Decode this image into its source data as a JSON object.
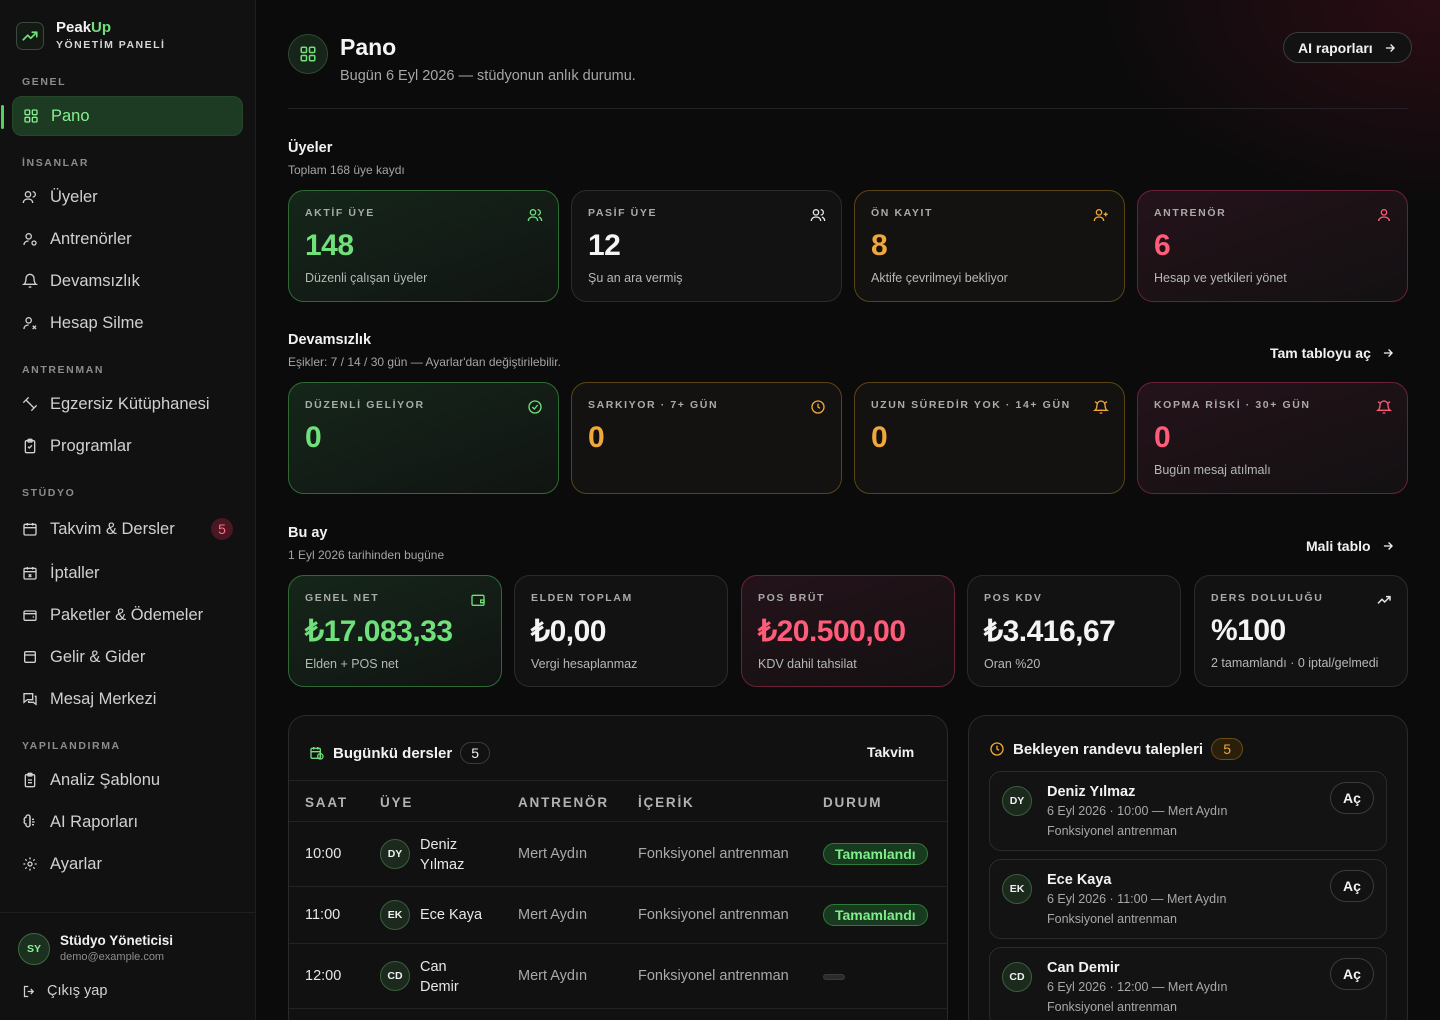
{
  "brand": {
    "name_a": "Peak",
    "name_b": "Up",
    "subtitle": "YÖNETİM PANELİ"
  },
  "sidebar": {
    "sections": [
      {
        "label": "GENEL"
      },
      {
        "label": "İNSANLAR"
      },
      {
        "label": "ANTRENMAN"
      },
      {
        "label": "STÜDYO"
      },
      {
        "label": "YAPILANDIRMA"
      }
    ],
    "items": [
      {
        "label": "Pano",
        "icon": "grid-icon",
        "active": true
      },
      {
        "label": "Üyeler",
        "icon": "users-icon"
      },
      {
        "label": "Antrenörler",
        "icon": "user-icon"
      },
      {
        "label": "Devamsızlık",
        "icon": "bell-icon"
      },
      {
        "label": "Hesap Silme",
        "icon": "user-x-icon"
      },
      {
        "label": "Egzersiz Kütüphanesi",
        "icon": "dumbbell-icon"
      },
      {
        "label": "Programlar",
        "icon": "clipboard-icon"
      },
      {
        "label": "Takvim & Dersler",
        "icon": "calendar-icon",
        "badge": "5"
      },
      {
        "label": "İptaller",
        "icon": "calendar-x-icon"
      },
      {
        "label": "Paketler & Ödemeler",
        "icon": "wallet-icon"
      },
      {
        "label": "Gelir & Gider",
        "icon": "receipt-icon"
      },
      {
        "label": "Mesaj Merkezi",
        "icon": "message-icon"
      },
      {
        "label": "Analiz Şablonu",
        "icon": "clipboard-icon"
      },
      {
        "label": "AI Raporları",
        "icon": "brain-icon"
      },
      {
        "label": "Ayarlar",
        "icon": "gear-icon"
      }
    ],
    "user": {
      "initials": "SY",
      "name": "Stüdyo Yöneticisi",
      "email": "demo@example.com"
    },
    "logout": "Çıkış yap"
  },
  "header": {
    "title": "Pano",
    "subtitle": "Bugün 6 Eyl 2026 — stüdyonun anlık durumu.",
    "ai_button": "AI raporları"
  },
  "members": {
    "title": "Üyeler",
    "subtitle": "Toplam 168 üye kaydı",
    "cards": [
      {
        "label": "AKTİF ÜYE",
        "value": "148",
        "desc": "Düzenli çalışan üyeler"
      },
      {
        "label": "PASİF ÜYE",
        "value": "12",
        "desc": "Şu an ara vermiş"
      },
      {
        "label": "ÖN KAYIT",
        "value": "8",
        "desc": "Aktife çevrilmeyi bekliyor"
      },
      {
        "label": "ANTRENÖR",
        "value": "6",
        "desc": "Hesap ve yetkileri yönet"
      }
    ]
  },
  "attendance": {
    "title": "Devamsızlık",
    "subtitle": "Eşikler: 7 / 14 / 30 gün — Ayarlar'dan değiştirilebilir.",
    "link": "Tam tabloyu aç",
    "cards": [
      {
        "label": "DÜZENLİ GELİYOR",
        "value": "0",
        "desc": ""
      },
      {
        "label": "SARKIYOR · 7+ GÜN",
        "value": "0",
        "desc": ""
      },
      {
        "label": "UZUN SÜREDİR YOK · 14+ GÜN",
        "value": "0",
        "desc": ""
      },
      {
        "label": "KOPMA RİSKİ · 30+ GÜN",
        "value": "0",
        "desc": "Bugün mesaj atılmalı"
      }
    ]
  },
  "month": {
    "title": "Bu ay",
    "subtitle": "1 Eyl 2026 tarihinden bugüne",
    "link": "Mali tablo",
    "cards": [
      {
        "label": "GENEL NET",
        "value": "₺17.083,33",
        "desc": "Elden + POS net"
      },
      {
        "label": "ELDEN TOPLAM",
        "value": "₺0,00",
        "desc": "Vergi hesaplanmaz"
      },
      {
        "label": "POS BRÜT",
        "value": "₺20.500,00",
        "desc": "KDV dahil tahsilat"
      },
      {
        "label": "POS KDV",
        "value": "₺3.416,67",
        "desc": "Oran %20"
      },
      {
        "label": "DERS DOLULUĞU",
        "value": "%100",
        "desc": "2 tamamlandı · 0 iptal/gelmedi"
      }
    ]
  },
  "lessons": {
    "title": "Bugünkü dersler",
    "count": "5",
    "link": "Takvim",
    "columns": [
      "SAAT",
      "ÜYE",
      "ANTRENÖR",
      "İÇERİK",
      "DURUM"
    ],
    "rows": [
      {
        "time": "10:00",
        "initials": "DY",
        "member_a": "Deniz",
        "member_b": "Yılmaz",
        "trainer": "Mert Aydın",
        "content": "Fonksiyonel antrenman",
        "status": "Tamamlandı"
      },
      {
        "time": "11:00",
        "initials": "EK",
        "member_a": "Ece Kaya",
        "member_b": "",
        "trainer": "Mert Aydın",
        "content": "Fonksiyonel antrenman",
        "status": "Tamamlandı"
      },
      {
        "time": "12:00",
        "initials": "CD",
        "member_a": "Can",
        "member_b": "Demir",
        "trainer": "Mert Aydın",
        "content": "Fonksiyonel antrenman",
        "status": ""
      }
    ]
  },
  "requests": {
    "title": "Bekleyen randevu talepleri",
    "count": "5",
    "open_label": "Aç",
    "items": [
      {
        "initials": "DY",
        "name": "Deniz Yılmaz",
        "when": "6 Eyl 2026 · 10:00 — Mert Aydın",
        "type": "Fonksiyonel antrenman"
      },
      {
        "initials": "EK",
        "name": "Ece Kaya",
        "when": "6 Eyl 2026 · 11:00 — Mert Aydın",
        "type": "Fonksiyonel antrenman"
      },
      {
        "initials": "CD",
        "name": "Can Demir",
        "when": "6 Eyl 2026 · 12:00 — Mert Aydın",
        "type": "Fonksiyonel antrenman"
      }
    ]
  },
  "colors": {
    "accent": "#6fe07a",
    "amber": "#f0a83a",
    "red": "#ff5c7a",
    "bg": "#0b0b0c"
  }
}
